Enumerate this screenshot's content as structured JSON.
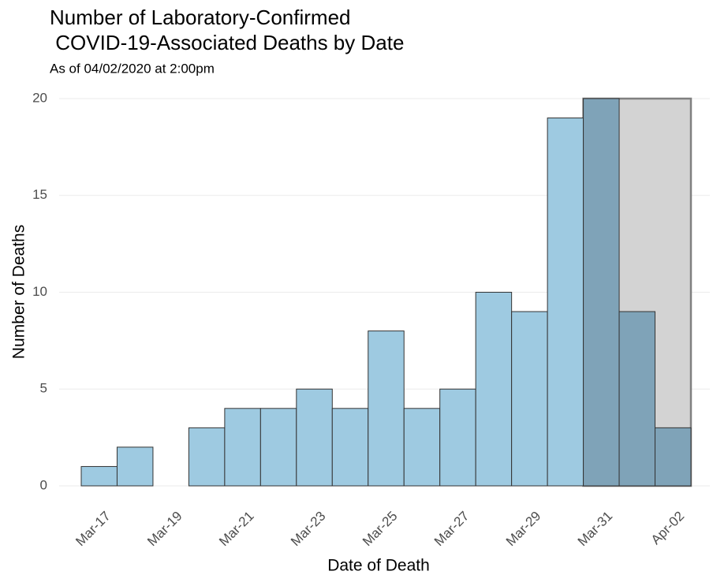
{
  "chart_data": {
    "type": "bar",
    "title": [
      "Number of Laboratory-Confirmed",
      " COVID-19-Associated Deaths by Date"
    ],
    "subtitle": "As of 04/02/2020 at 2:00pm",
    "x_label": "Date of Death",
    "y_label": "Number of Deaths",
    "categories": [
      "Mar-17",
      null,
      "Mar-19",
      null,
      "Mar-21",
      null,
      "Mar-23",
      null,
      "Mar-25",
      null,
      "Mar-27",
      null,
      "Mar-29",
      null,
      "Mar-31",
      null,
      "Apr-02"
    ],
    "values": [
      1,
      2,
      0,
      3,
      4,
      4,
      5,
      4,
      8,
      4,
      5,
      10,
      9,
      19,
      20,
      9,
      3
    ],
    "color": "#9ecae1",
    "colors": [
      "#9ecae1",
      "#9ecae1",
      "#9ecae1",
      "#9ecae1",
      "#9ecae1",
      "#9ecae1",
      "#9ecae1",
      "#9ecae1",
      "#9ecae1",
      "#9ecae1",
      "#9ecae1",
      "#9ecae1",
      "#9ecae1",
      "#9ecae1",
      "#7fa3b8",
      "#7fa3b8",
      "#7fa3b8"
    ],
    "shade_color": "#d3d3d3",
    "ylim": [
      0,
      20
    ],
    "yticks": [
      0,
      5,
      10,
      15,
      20
    ],
    "grid": true
  }
}
